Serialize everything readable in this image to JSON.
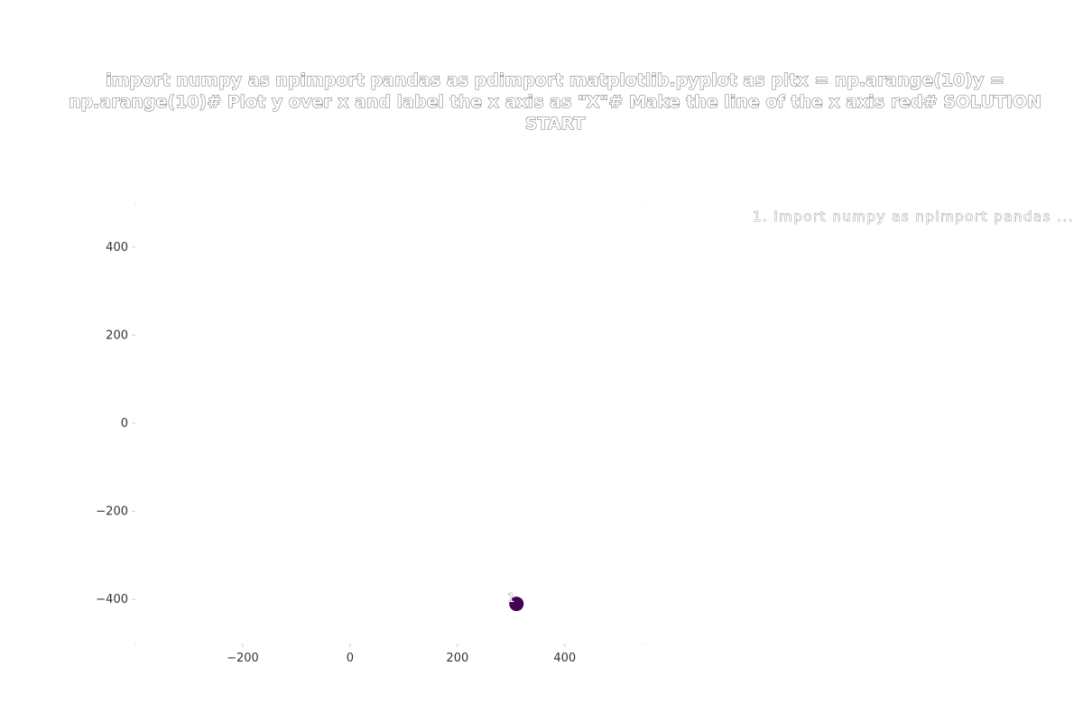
{
  "chart_data": {
    "type": "scatter",
    "title_lines": [
      "import numpy as npimport pandas as pdimport matplotlib.pyplot as pltx = np.arange(10)y =",
      "np.arange(10)# Plot y over x and label the x axis as \"X\"# Make the line of the x axis red# SOLUTION",
      "START"
    ],
    "xlabel": "",
    "ylabel": "",
    "x_ticks": [
      -200,
      0,
      200,
      400
    ],
    "y_ticks": [
      400,
      200,
      0,
      -200,
      -400
    ],
    "xlim": [
      -400,
      550
    ],
    "ylim": [
      -500,
      500
    ],
    "grid": false,
    "legend_position": "top-right",
    "legend": [
      "1. import numpy as npimport pandas ..."
    ],
    "points": [
      {
        "label": "1",
        "x": 310,
        "y": -410,
        "color": "#440154"
      }
    ]
  }
}
